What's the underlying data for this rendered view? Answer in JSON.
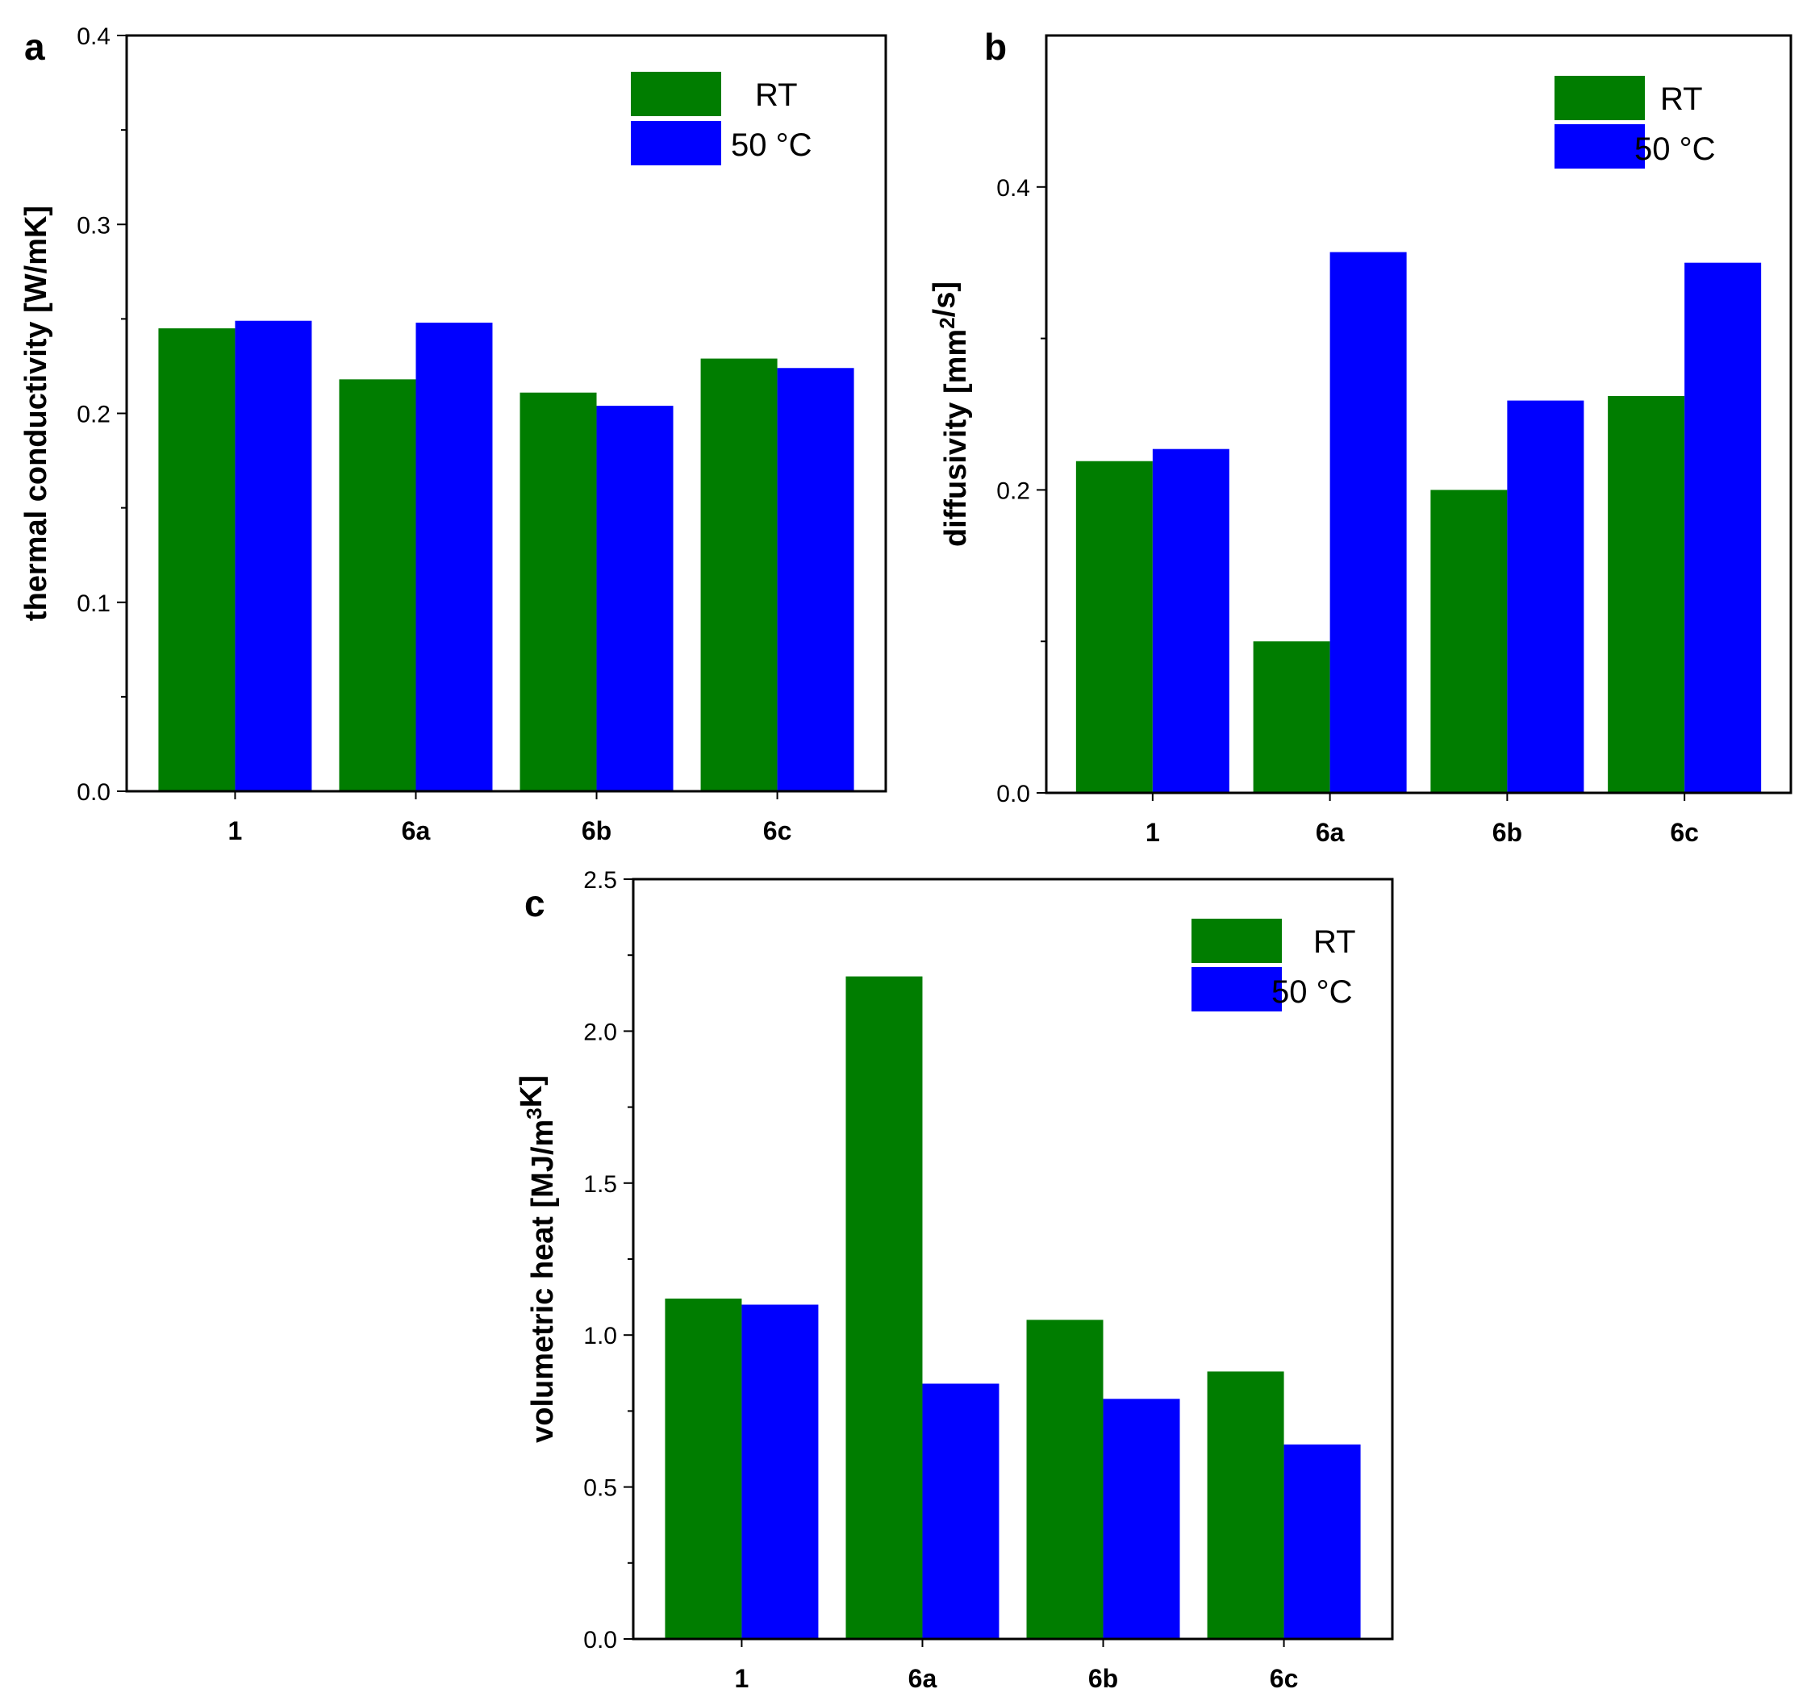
{
  "colors": {
    "RT": "#007d00",
    "50 °C": "#0000ff"
  },
  "chart_data": [
    {
      "type": "bar",
      "panel": "a",
      "categories": [
        "1",
        "6a",
        "6b",
        "6c"
      ],
      "series": [
        {
          "name": "RT",
          "values": [
            0.245,
            0.218,
            0.211,
            0.229
          ]
        },
        {
          "name": "50 °C",
          "values": [
            0.249,
            0.248,
            0.204,
            0.224
          ]
        }
      ],
      "ylabel": "thermal conductivity [W/mK]",
      "ylim": [
        0,
        0.4
      ],
      "yticks": [
        "0.0",
        "0.1",
        "0.2",
        "0.3",
        "0.4"
      ],
      "legend_position": "top-right",
      "grid": false
    },
    {
      "type": "bar",
      "panel": "b",
      "categories": [
        "1",
        "6a",
        "6b",
        "6c"
      ],
      "series": [
        {
          "name": "RT",
          "values": [
            0.219,
            0.1,
            0.2,
            0.262
          ]
        },
        {
          "name": "50 °C",
          "values": [
            0.227,
            0.357,
            0.259,
            0.35
          ]
        }
      ],
      "ylabel": "diffusivity [mm²/s]",
      "ylim": [
        0,
        0.5
      ],
      "yticks": [
        "0.0",
        "0.2",
        "0.4"
      ],
      "legend_position": "top-right",
      "grid": false
    },
    {
      "type": "bar",
      "panel": "c",
      "categories": [
        "1",
        "6a",
        "6b",
        "6c"
      ],
      "series": [
        {
          "name": "RT",
          "values": [
            1.12,
            2.18,
            1.05,
            0.88
          ]
        },
        {
          "name": "50 °C",
          "values": [
            1.1,
            0.84,
            0.79,
            0.64
          ]
        }
      ],
      "ylabel": "volumetric heat [MJ/m³K]",
      "ylim": [
        0,
        2.5
      ],
      "yticks": [
        "0.0",
        "0.5",
        "1.0",
        "1.5",
        "2.0",
        "2.5"
      ],
      "legend_position": "top-right",
      "grid": false
    }
  ]
}
